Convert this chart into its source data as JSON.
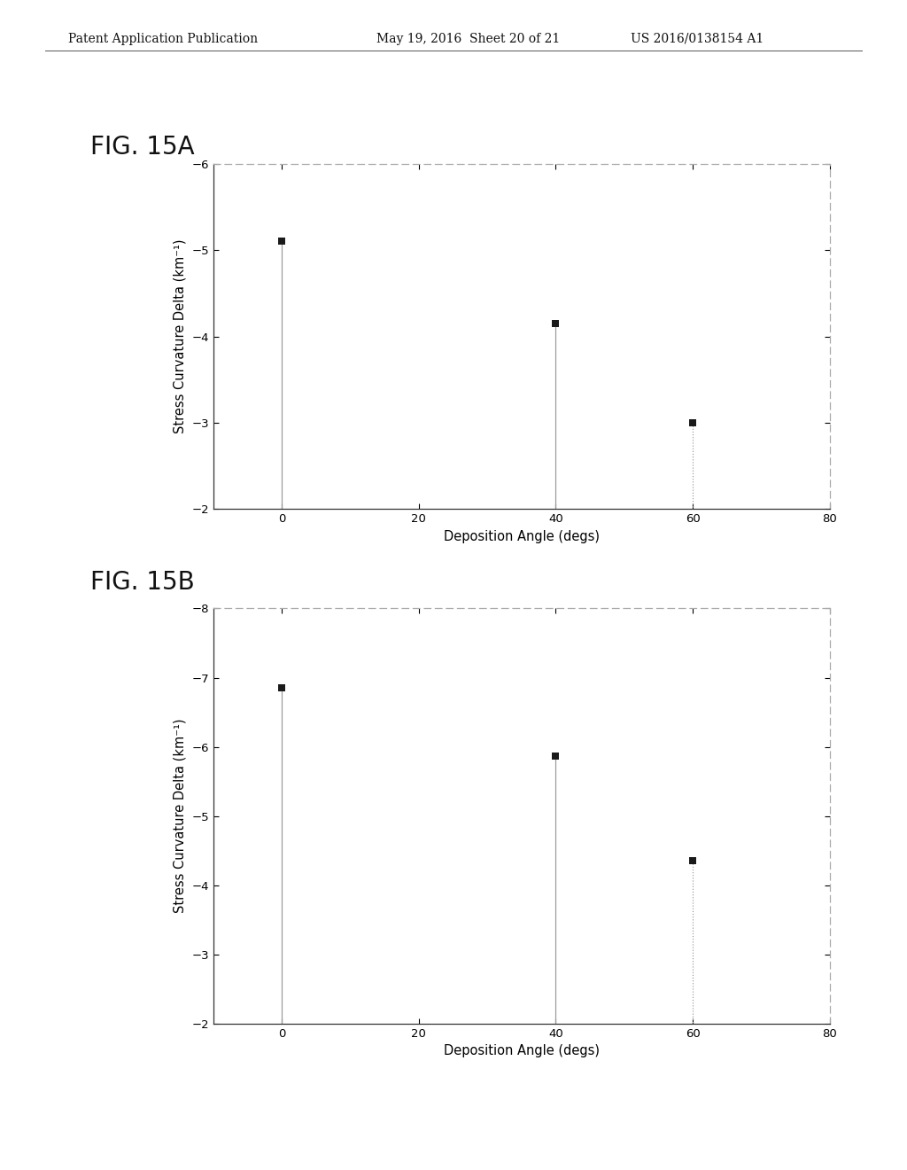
{
  "header_left": "Patent Application Publication",
  "header_center": "May 19, 2016  Sheet 20 of 21",
  "header_right": "US 2016/0138154 A1",
  "fig_a_label": "FIG. 15A",
  "fig_b_label": "FIG. 15B",
  "fig_a": {
    "x": [
      0,
      40,
      60
    ],
    "y": [
      -5.1,
      -4.15,
      -3.0
    ],
    "xlim": [
      -10,
      80
    ],
    "ylim": [
      -6,
      -2
    ],
    "yticks": [
      -6,
      -5,
      -4,
      -3,
      -2
    ],
    "xticks": [
      0,
      20,
      40,
      60,
      80
    ],
    "xlabel": "Deposition Angle (degs)",
    "ylabel": "Stress Curvature Delta (km⁻¹)",
    "stem_styles": [
      "solid",
      "solid",
      "dotted"
    ],
    "stem_baseline": -2
  },
  "fig_b": {
    "x": [
      0,
      40,
      60
    ],
    "y": [
      -6.85,
      -5.87,
      -4.35
    ],
    "xlim": [
      -10,
      80
    ],
    "ylim": [
      -8,
      -2
    ],
    "yticks": [
      -8,
      -7,
      -6,
      -5,
      -4,
      -3,
      -2
    ],
    "xticks": [
      0,
      20,
      40,
      60,
      80
    ],
    "xlabel": "Deposition Angle (degs)",
    "ylabel": "Stress Curvature Delta (km⁻¹)",
    "stem_styles": [
      "solid",
      "solid",
      "dotted"
    ],
    "stem_baseline": -2
  },
  "marker_color": "#1a1a1a",
  "stem_color": "#999999",
  "spine_solid_color": "#333333",
  "spine_dotted_color": "#aaaaaa",
  "background_color": "#ffffff",
  "header_fontsize": 10,
  "fig_label_fontsize": 20,
  "axis_label_fontsize": 10.5,
  "tick_fontsize": 9.5,
  "marker_size": 6
}
